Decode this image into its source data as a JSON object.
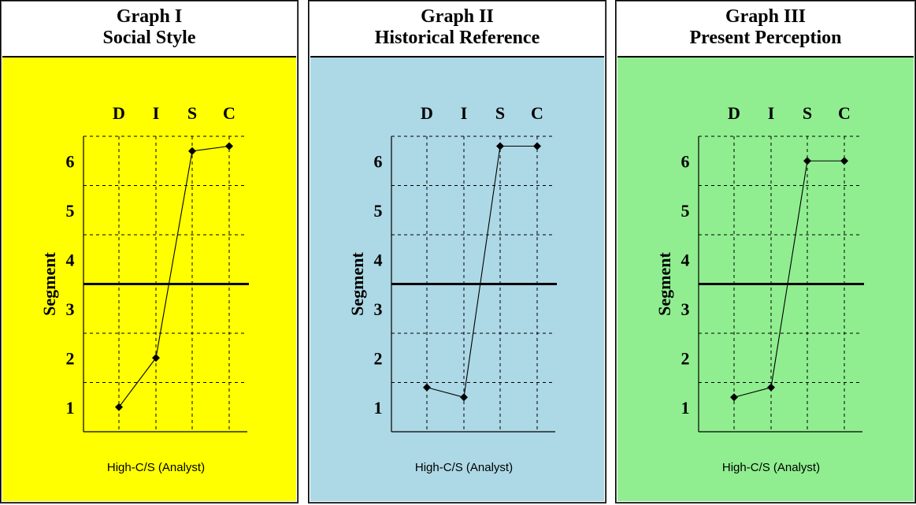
{
  "charts": [
    {
      "heading_line1": "Graph I",
      "heading_line2": "Social Style",
      "background": "#ffff00",
      "caption": "High-C/S (Analyst)"
    },
    {
      "heading_line1": "Graph II",
      "heading_line2": "Historical Reference",
      "background": "#add8e6",
      "caption": "High-C/S (Analyst)"
    },
    {
      "heading_line1": "Graph III",
      "heading_line2": "Present Perception",
      "background": "#90ee90",
      "caption": "High-C/S (Analyst)"
    }
  ],
  "chart_data": [
    {
      "type": "line",
      "title": "Graph I Social Style",
      "categories": [
        "D",
        "I",
        "S",
        "C"
      ],
      "ylabel": "Segment",
      "yticks": [
        "1",
        "2",
        "3",
        "4",
        "5",
        "6"
      ],
      "ylim": [
        0.5,
        6.5
      ],
      "midline": 3.5,
      "grid": true,
      "series": [
        {
          "values": [
            1.0,
            2.0,
            6.2,
            6.3
          ]
        }
      ]
    },
    {
      "type": "line",
      "title": "Graph II Historical Reference",
      "categories": [
        "D",
        "I",
        "S",
        "C"
      ],
      "ylabel": "Segment",
      "yticks": [
        "1",
        "2",
        "3",
        "4",
        "5",
        "6"
      ],
      "ylim": [
        0.5,
        6.5
      ],
      "midline": 3.5,
      "grid": true,
      "series": [
        {
          "values": [
            1.4,
            1.2,
            6.3,
            6.3
          ]
        }
      ]
    },
    {
      "type": "line",
      "title": "Graph III Present Perception",
      "categories": [
        "D",
        "I",
        "S",
        "C"
      ],
      "ylabel": "Segment",
      "yticks": [
        "1",
        "2",
        "3",
        "4",
        "5",
        "6"
      ],
      "ylim": [
        0.5,
        6.5
      ],
      "midline": 3.5,
      "grid": true,
      "series": [
        {
          "values": [
            1.2,
            1.4,
            6.0,
            6.0
          ]
        }
      ]
    }
  ]
}
